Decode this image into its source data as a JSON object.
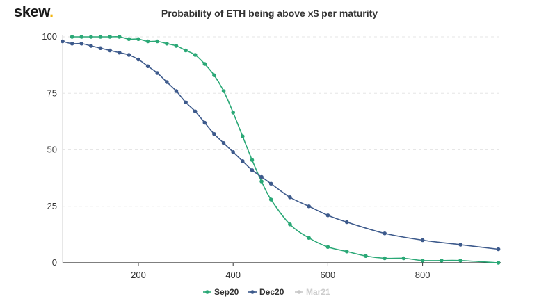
{
  "brand": {
    "name": "skew",
    "dot": "."
  },
  "chart_data": {
    "type": "line",
    "title": "Probability of ETH being above x$ per maturity",
    "xlabel": "",
    "ylabel": "",
    "xlim": [
      40,
      965
    ],
    "ylim": [
      0,
      100
    ],
    "x_ticks": [
      200,
      400,
      600,
      800
    ],
    "y_ticks": [
      0,
      25,
      50,
      75,
      100
    ],
    "grid": "horizontal dashed",
    "legend_position": "bottom-center",
    "series": [
      {
        "name": "Sep20",
        "color": "#2aa876",
        "visible": true,
        "points": [
          [
            60,
            100
          ],
          [
            80,
            100
          ],
          [
            100,
            100
          ],
          [
            120,
            100
          ],
          [
            140,
            100
          ],
          [
            160,
            100
          ],
          [
            180,
            99
          ],
          [
            200,
            99
          ],
          [
            220,
            98
          ],
          [
            240,
            98
          ],
          [
            260,
            97
          ],
          [
            280,
            96
          ],
          [
            300,
            94
          ],
          [
            320,
            92
          ],
          [
            340,
            88
          ],
          [
            360,
            83
          ],
          [
            380,
            76
          ],
          [
            400,
            66.5
          ],
          [
            420,
            56
          ],
          [
            440,
            45.5
          ],
          [
            460,
            36
          ],
          [
            480,
            28
          ],
          [
            520,
            17
          ],
          [
            560,
            11
          ],
          [
            600,
            7
          ],
          [
            640,
            5
          ],
          [
            680,
            3
          ],
          [
            720,
            2
          ],
          [
            760,
            2
          ],
          [
            800,
            1
          ],
          [
            840,
            1
          ],
          [
            880,
            1
          ],
          [
            960,
            0
          ]
        ]
      },
      {
        "name": "Dec20",
        "color": "#3d5a8c",
        "visible": true,
        "points": [
          [
            40,
            98
          ],
          [
            60,
            97
          ],
          [
            80,
            97
          ],
          [
            100,
            96
          ],
          [
            120,
            95
          ],
          [
            140,
            94
          ],
          [
            160,
            93
          ],
          [
            180,
            92
          ],
          [
            200,
            90
          ],
          [
            220,
            87
          ],
          [
            240,
            84
          ],
          [
            260,
            80
          ],
          [
            280,
            76
          ],
          [
            300,
            71
          ],
          [
            320,
            67
          ],
          [
            340,
            62
          ],
          [
            360,
            57
          ],
          [
            380,
            53
          ],
          [
            400,
            49
          ],
          [
            420,
            45
          ],
          [
            440,
            41
          ],
          [
            460,
            38
          ],
          [
            480,
            35
          ],
          [
            520,
            29
          ],
          [
            560,
            25
          ],
          [
            600,
            21
          ],
          [
            640,
            18
          ],
          [
            720,
            13
          ],
          [
            800,
            10
          ],
          [
            880,
            8
          ],
          [
            960,
            6
          ]
        ]
      },
      {
        "name": "Mar21",
        "color": "#c8c8c8",
        "visible": false,
        "points": []
      }
    ]
  }
}
